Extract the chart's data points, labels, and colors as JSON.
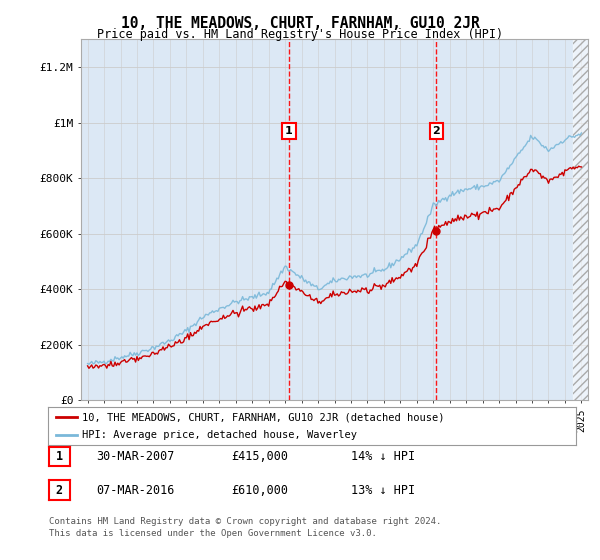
{
  "title": "10, THE MEADOWS, CHURT, FARNHAM, GU10 2JR",
  "subtitle": "Price paid vs. HM Land Registry's House Price Index (HPI)",
  "background_color": "#ffffff",
  "plot_bg_color": "#dce8f5",
  "ylim": [
    0,
    1300000
  ],
  "yticks": [
    0,
    200000,
    400000,
    600000,
    800000,
    1000000,
    1200000
  ],
  "ytick_labels": [
    "£0",
    "£200K",
    "£400K",
    "£600K",
    "£800K",
    "£1M",
    "£1.2M"
  ],
  "sale1_year": 2007.23,
  "sale1_price": 415000,
  "sale1_date": "30-MAR-2007",
  "sale1_pct": "14% ↓ HPI",
  "sale2_year": 2016.18,
  "sale2_price": 610000,
  "sale2_date": "07-MAR-2016",
  "sale2_pct": "13% ↓ HPI",
  "line1_color": "#cc0000",
  "line2_color": "#7ab8d9",
  "legend1_label": "10, THE MEADOWS, CHURT, FARNHAM, GU10 2JR (detached house)",
  "legend2_label": "HPI: Average price, detached house, Waverley",
  "footer1": "Contains HM Land Registry data © Crown copyright and database right 2024.",
  "footer2": "This data is licensed under the Open Government Licence v3.0.",
  "hpi_years": [
    1995,
    1996,
    1997,
    1998,
    1999,
    2000,
    2001,
    2002,
    2003,
    2004,
    2005,
    2006,
    2007,
    2008,
    2009,
    2010,
    2011,
    2012,
    2013,
    2014,
    2015,
    2016,
    2017,
    2018,
    2019,
    2020,
    2021,
    2022,
    2023,
    2024,
    2025
  ],
  "hpi_vals": [
    130000,
    140000,
    155000,
    170000,
    190000,
    215000,
    250000,
    300000,
    330000,
    355000,
    370000,
    390000,
    482000,
    440000,
    400000,
    430000,
    445000,
    450000,
    470000,
    510000,
    560000,
    700000,
    740000,
    760000,
    770000,
    790000,
    870000,
    950000,
    900000,
    940000,
    960000
  ]
}
